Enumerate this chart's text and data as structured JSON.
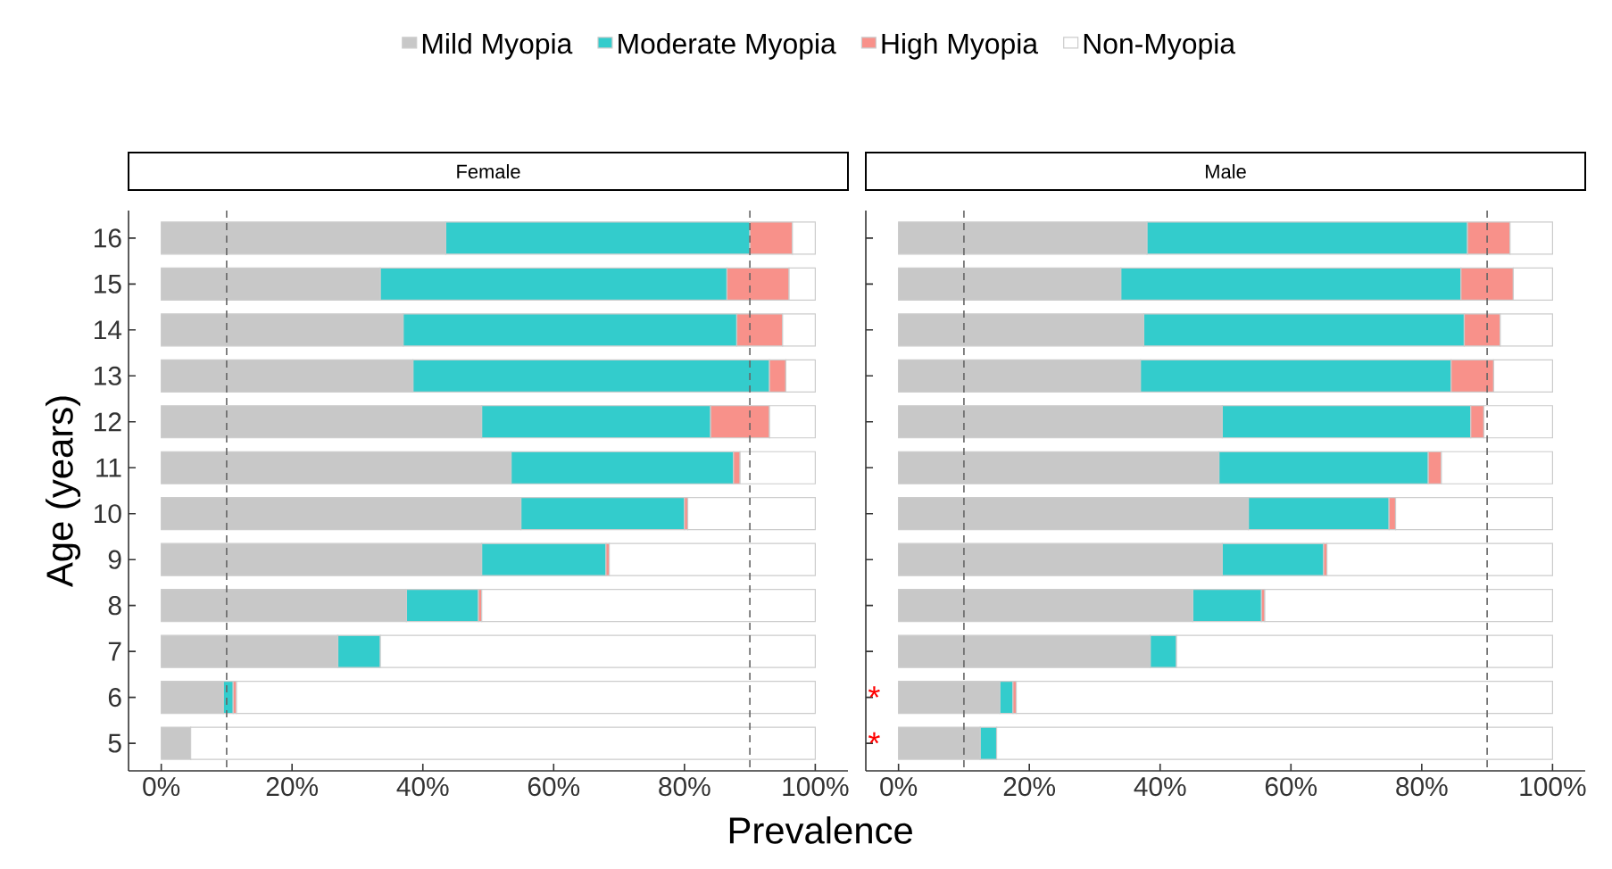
{
  "chart_data": [
    {
      "type": "bar",
      "orientation": "horizontal",
      "stacked": true,
      "title": "Female",
      "xlabel": "Prevalence",
      "ylabel": "Age (years)",
      "categories": [
        "16",
        "15",
        "14",
        "13",
        "12",
        "11",
        "10",
        "9",
        "8",
        "7",
        "6",
        "5"
      ],
      "series": [
        {
          "name": "Mild Myopia",
          "color": "#c8c8c8",
          "values": [
            43.5,
            33.5,
            37,
            38.5,
            49,
            53.5,
            55,
            49,
            37.5,
            27,
            9.5,
            4.5
          ]
        },
        {
          "name": "Moderate Myopia",
          "color": "#33cccc",
          "values": [
            46.5,
            53,
            51,
            54.5,
            35,
            34,
            25,
            19,
            11,
            6.5,
            1.5,
            0
          ]
        },
        {
          "name": "High Myopia",
          "color": "#f8918a",
          "values": [
            6.5,
            9.5,
            7,
            2.5,
            9,
            1,
            0.5,
            0.5,
            0.5,
            0,
            0.5,
            0
          ]
        },
        {
          "name": "Non-Myopia",
          "color": "#ffffff",
          "values": [
            3.5,
            4,
            5,
            4.5,
            7,
            11.5,
            19.5,
            31.5,
            51,
            66.5,
            88.5,
            95.5
          ]
        }
      ],
      "xlim": [
        -5,
        105
      ],
      "xticks": [
        {
          "value": 0,
          "label": "0%"
        },
        {
          "value": 20,
          "label": "20%"
        },
        {
          "value": 40,
          "label": "40%"
        },
        {
          "value": 60,
          "label": "60%"
        },
        {
          "value": 80,
          "label": "80%"
        },
        {
          "value": 100,
          "label": "100%"
        }
      ],
      "ref_lines": [
        {
          "axis": "x",
          "value": 10,
          "line_style": "dashed"
        },
        {
          "axis": "x",
          "value": 90,
          "line_style": "dashed"
        }
      ],
      "legend": "top"
    },
    {
      "type": "bar",
      "orientation": "horizontal",
      "stacked": true,
      "title": "Male",
      "categories": [
        "16",
        "15",
        "14",
        "13",
        "12",
        "11",
        "10",
        "9",
        "8",
        "7",
        "6",
        "5"
      ],
      "series": [
        {
          "color": "#c8c8c8",
          "values": [
            38,
            34,
            37.5,
            37,
            49.5,
            49,
            53.5,
            49.5,
            45,
            38.5,
            15.5,
            12.5
          ]
        },
        {
          "color": "#33cccc",
          "values": [
            49,
            52,
            49,
            47.5,
            38,
            32,
            21.5,
            15.5,
            10.5,
            4,
            2,
            2.5
          ]
        },
        {
          "color": "#f8918a",
          "values": [
            6.5,
            8,
            5.5,
            6.5,
            2,
            2,
            1,
            0.5,
            0.5,
            0,
            0.5,
            0
          ]
        },
        {
          "color": "#ffffff",
          "values": [
            6.5,
            6,
            8,
            9,
            10.5,
            17,
            24,
            34.5,
            44,
            57.5,
            82,
            85
          ]
        }
      ],
      "xlim": [
        -5,
        105
      ],
      "xticks": [
        {
          "value": 0,
          "label": "0%"
        },
        {
          "value": 20,
          "label": "20%"
        },
        {
          "value": 40,
          "label": "40%"
        },
        {
          "value": 60,
          "label": "60%"
        },
        {
          "value": 80,
          "label": "80%"
        },
        {
          "value": 100,
          "label": "100%"
        }
      ],
      "ref_lines": [
        {
          "axis": "x",
          "value": 10,
          "line_style": "dashed"
        },
        {
          "axis": "x",
          "value": 90,
          "line_style": "dashed"
        }
      ],
      "tick_labels": "x",
      "annotations": [
        "*",
        "*"
      ]
    }
  ]
}
